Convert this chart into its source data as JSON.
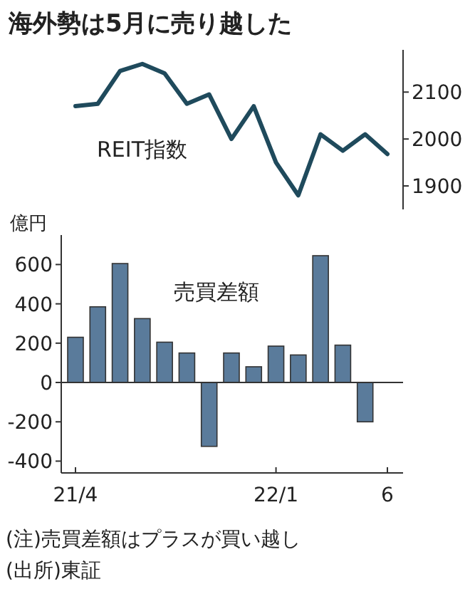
{
  "chart_data": [
    {
      "type": "line",
      "title": "海外勢は5月に売り越した",
      "categories": [
        null,
        null,
        null,
        null,
        null,
        null,
        null,
        null,
        null,
        null,
        null,
        null,
        null,
        null,
        null
      ],
      "tick_labels": "y",
      "ylim": [
        1850,
        2190
      ],
      "yticks": [
        1900,
        2000,
        2100
      ],
      "series": [
        {
          "name": "REIT指数",
          "color": "#1f4a5c",
          "values": [
            2070,
            2075,
            2145,
            2160,
            2140,
            2075,
            2095,
            2000,
            2070,
            1950,
            1880,
            2010,
            1975,
            2010,
            1968
          ]
        }
      ]
    },
    {
      "type": "bar",
      "ylabel": "億円",
      "categories": [
        "21/4",
        null,
        null,
        null,
        null,
        null,
        null,
        null,
        null,
        "22/1",
        null,
        null,
        null,
        null,
        "6"
      ],
      "ylim": [
        -460,
        750
      ],
      "yticks": [
        -400,
        -200,
        0,
        200,
        400,
        600
      ],
      "series": [
        {
          "name": "売買差額",
          "color": "#5a7b9b",
          "values": [
            230,
            385,
            605,
            325,
            205,
            150,
            -325,
            150,
            80,
            185,
            140,
            645,
            190,
            -200,
            null
          ]
        }
      ],
      "annotations": [
        "(注)売買差額はプラスが買い越し",
        "(出所)東証"
      ]
    }
  ]
}
